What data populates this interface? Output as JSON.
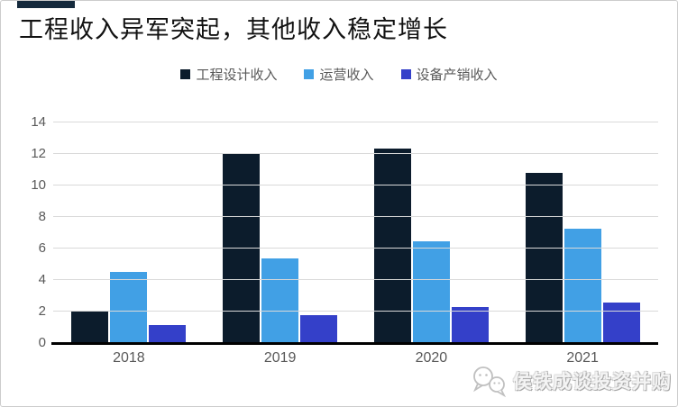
{
  "header": {
    "title": "工程收入异军突起，其他收入稳定增长"
  },
  "chart_data": {
    "type": "bar",
    "title": "工程收入异军突起，其他收入稳定增长",
    "categories": [
      "2018",
      "2019",
      "2020",
      "2021"
    ],
    "series": [
      {
        "key": "engineering-design-revenue",
        "name": "工程设计收入",
        "color": "#0c1c2c",
        "values": [
          2.0,
          12.0,
          12.35,
          10.8
        ]
      },
      {
        "key": "operation-revenue",
        "name": "运营收入",
        "color": "#41a0e5",
        "values": [
          4.5,
          5.4,
          6.45,
          7.25
        ]
      },
      {
        "key": "equipment-sales-revenue",
        "name": "设备产销收入",
        "color": "#3440c9",
        "values": [
          1.15,
          1.8,
          2.3,
          2.6
        ]
      }
    ],
    "xlabel": "",
    "ylabel": "",
    "ylim": [
      0,
      14
    ],
    "yticks": [
      0,
      2,
      4,
      6,
      8,
      10,
      12,
      14
    ],
    "grid": true,
    "legend_position": "top"
  },
  "watermark": {
    "icon": "chat-bubbles-icon",
    "text": "侯铁成谈投资并购"
  },
  "colors": {
    "accent_bar": "#152a3d",
    "grid_line": "#d9d9d9",
    "axis_line": "#000000",
    "tick_text": "#595959",
    "legend_text": "#595959",
    "page_border": "#cccccc"
  }
}
